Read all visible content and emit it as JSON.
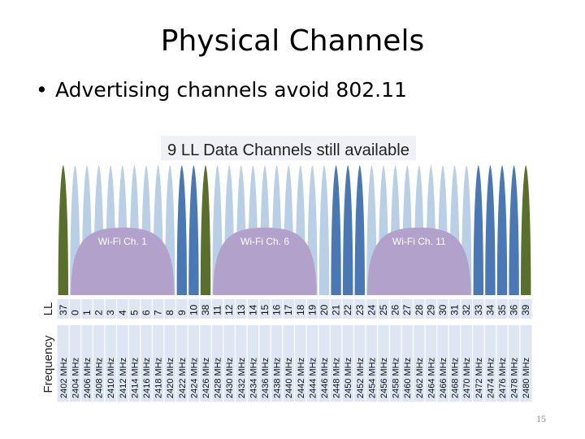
{
  "slide": {
    "title": "Physical Channels",
    "bullet": "Advertising channels avoid 802.11",
    "page_number": "15"
  },
  "diagram": {
    "banner": "9 LL Data Channels still available",
    "row_labels": {
      "channel": "LL",
      "frequency": "Frequency"
    },
    "wifi_channels": [
      {
        "label": "Wi-Fi Ch. 1",
        "from_index": 1,
        "to_index": 9
      },
      {
        "label": "Wi-Fi Ch. 6",
        "from_index": 13,
        "to_index": 21
      },
      {
        "label": "Wi-Fi Ch. 11",
        "from_index": 26,
        "to_index": 34
      }
    ],
    "colors": {
      "advertising": "#5a6f2c",
      "free_data": "#4a78b5",
      "overlapped_data": "#b9cfe5",
      "wifi": "#b2a1cb",
      "table_row": "#dde6f2"
    },
    "channels": [
      {
        "ll": "37",
        "freq": "2402 MHz",
        "type": "advertising"
      },
      {
        "ll": "0",
        "freq": "2404 MHz",
        "type": "overlapped_data"
      },
      {
        "ll": "1",
        "freq": "2406 MHz",
        "type": "overlapped_data"
      },
      {
        "ll": "2",
        "freq": "2408 MHz",
        "type": "overlapped_data"
      },
      {
        "ll": "3",
        "freq": "2410 MHz",
        "type": "overlapped_data"
      },
      {
        "ll": "4",
        "freq": "2412 MHz",
        "type": "overlapped_data"
      },
      {
        "ll": "5",
        "freq": "2414 MHz",
        "type": "overlapped_data"
      },
      {
        "ll": "6",
        "freq": "2416 MHz",
        "type": "overlapped_data"
      },
      {
        "ll": "7",
        "freq": "2418 MHz",
        "type": "overlapped_data"
      },
      {
        "ll": "8",
        "freq": "2420 MHz",
        "type": "overlapped_data"
      },
      {
        "ll": "9",
        "freq": "2422 MHz",
        "type": "free_data"
      },
      {
        "ll": "10",
        "freq": "2424 MHz",
        "type": "free_data"
      },
      {
        "ll": "38",
        "freq": "2426 MHz",
        "type": "advertising"
      },
      {
        "ll": "11",
        "freq": "2428 MHz",
        "type": "overlapped_data"
      },
      {
        "ll": "12",
        "freq": "2430 MHz",
        "type": "overlapped_data"
      },
      {
        "ll": "13",
        "freq": "2432 MHz",
        "type": "overlapped_data"
      },
      {
        "ll": "14",
        "freq": "2434 MHz",
        "type": "overlapped_data"
      },
      {
        "ll": "15",
        "freq": "2436 MHz",
        "type": "overlapped_data"
      },
      {
        "ll": "16",
        "freq": "2438 MHz",
        "type": "overlapped_data"
      },
      {
        "ll": "17",
        "freq": "2440 MHz",
        "type": "overlapped_data"
      },
      {
        "ll": "18",
        "freq": "2442 MHz",
        "type": "overlapped_data"
      },
      {
        "ll": "19",
        "freq": "2444 MHz",
        "type": "overlapped_data"
      },
      {
        "ll": "20",
        "freq": "2446 MHz",
        "type": "overlapped_data"
      },
      {
        "ll": "21",
        "freq": "2448 MHz",
        "type": "free_data"
      },
      {
        "ll": "22",
        "freq": "2450 MHz",
        "type": "free_data"
      },
      {
        "ll": "23",
        "freq": "2452 MHz",
        "type": "free_data"
      },
      {
        "ll": "24",
        "freq": "2454 MHz",
        "type": "overlapped_data"
      },
      {
        "ll": "25",
        "freq": "2456 MHz",
        "type": "overlapped_data"
      },
      {
        "ll": "26",
        "freq": "2458 MHz",
        "type": "overlapped_data"
      },
      {
        "ll": "27",
        "freq": "2460 MHz",
        "type": "overlapped_data"
      },
      {
        "ll": "28",
        "freq": "2462 MHz",
        "type": "overlapped_data"
      },
      {
        "ll": "29",
        "freq": "2464 MHz",
        "type": "overlapped_data"
      },
      {
        "ll": "30",
        "freq": "2466 MHz",
        "type": "overlapped_data"
      },
      {
        "ll": "31",
        "freq": "2468 MHz",
        "type": "overlapped_data"
      },
      {
        "ll": "32",
        "freq": "2470 MHz",
        "type": "overlapped_data"
      },
      {
        "ll": "33",
        "freq": "2472 MHz",
        "type": "free_data"
      },
      {
        "ll": "34",
        "freq": "2474 MHz",
        "type": "free_data"
      },
      {
        "ll": "35",
        "freq": "2476 MHz",
        "type": "free_data"
      },
      {
        "ll": "36",
        "freq": "2478 MHz",
        "type": "free_data"
      },
      {
        "ll": "39",
        "freq": "2480 MHz",
        "type": "advertising"
      }
    ]
  }
}
